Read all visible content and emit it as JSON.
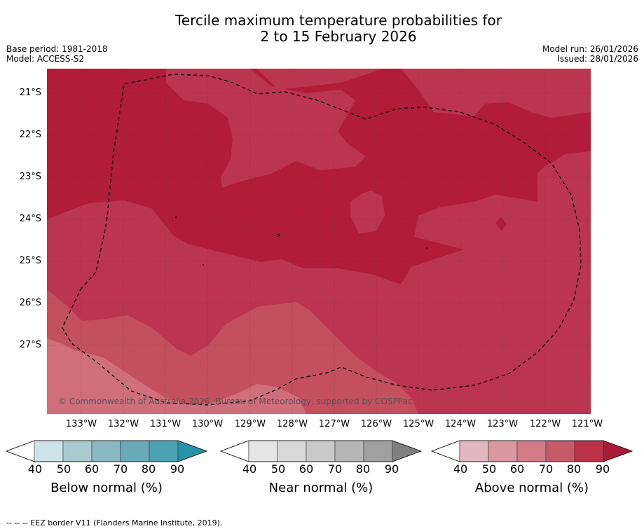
{
  "title_line1": "Tercile maximum temperature probabilities for",
  "title_line2": "2 to 15 February 2026",
  "meta_left": {
    "base_period": "Base period: 1981-2018",
    "model": "Model: ACCESS-S2"
  },
  "meta_right": {
    "model_run": "Model run: 26/01/2026",
    "issued": "Issued: 28/01/2026"
  },
  "latitudes": [
    "21°S",
    "22°S",
    "23°S",
    "24°S",
    "25°S",
    "26°S",
    "27°S"
  ],
  "longitudes": [
    "133°W",
    "132°W",
    "131°W",
    "130°W",
    "129°W",
    "128°W",
    "127°W",
    "126°W",
    "125°W",
    "124°W",
    "123°W",
    "122°W",
    "121°W"
  ],
  "copyright": "© Commonwealth of Australia 2026, Bureau of Meteorology, supported by COSPPac",
  "colorbars": [
    {
      "label": "Below normal (%)",
      "ticks": [
        "40",
        "50",
        "60",
        "70",
        "80",
        "90"
      ],
      "colors": [
        "#ffffff",
        "#cde3e8",
        "#a8cad1",
        "#8ab9c4",
        "#6aaab8",
        "#49a1b2",
        "#2892a8"
      ]
    },
    {
      "label": "Near normal (%)",
      "ticks": [
        "40",
        "50",
        "60",
        "70",
        "80",
        "90"
      ],
      "colors": [
        "#ffffff",
        "#e6e6e6",
        "#d9d9d9",
        "#c9c9c9",
        "#b6b6b6",
        "#a0a0a0",
        "#808080"
      ]
    },
    {
      "label": "Above normal (%)",
      "ticks": [
        "40",
        "50",
        "60",
        "70",
        "80",
        "90"
      ],
      "colors": [
        "#ffffff",
        "#e3b7bf",
        "#d9979f",
        "#d07b86",
        "#c65a69",
        "#bb3249",
        "#ab1a36"
      ]
    }
  ],
  "palette": {
    "class80": "#b11c39",
    "class70": "#bc3550",
    "class60": "#c4505f",
    "class50": "#d06f7b"
  },
  "footer": "--  --  -- EEZ border V11 (Flanders Marine Institute, 2019)."
}
